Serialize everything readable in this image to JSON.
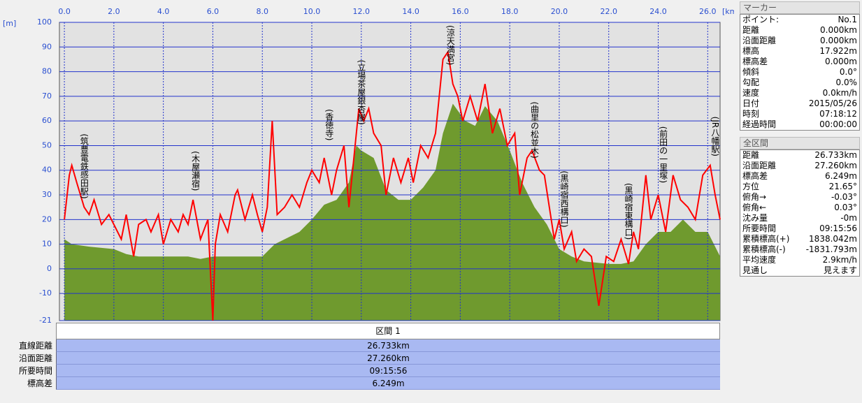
{
  "chart_data": {
    "type": "line",
    "y_unit": "[m]",
    "x_unit": "[km]",
    "xlim": [
      -0.2,
      26.5
    ],
    "ylim": [
      -21,
      100
    ],
    "xticks": [
      {
        "value": 0,
        "label": "0.0"
      },
      {
        "value": 2,
        "label": "2.0"
      },
      {
        "value": 4,
        "label": "4.0"
      },
      {
        "value": 6,
        "label": "6.0"
      },
      {
        "value": 8,
        "label": "8.0"
      },
      {
        "value": 10,
        "label": "10.0"
      },
      {
        "value": 12,
        "label": "12.0"
      },
      {
        "value": 14,
        "label": "14.0"
      },
      {
        "value": 16,
        "label": "16.0"
      },
      {
        "value": 18,
        "label": "18.0"
      },
      {
        "value": 20,
        "label": "20.0"
      },
      {
        "value": 22,
        "label": "22.0"
      },
      {
        "value": 24,
        "label": "24.0"
      },
      {
        "value": 26,
        "label": "26.0"
      }
    ],
    "yticks": [
      100,
      90,
      80,
      70,
      60,
      50,
      40,
      30,
      20,
      10,
      0,
      -10,
      -21
    ],
    "grid": true,
    "terrain": {
      "color": "#6f9a2e",
      "x": [
        0,
        0.3,
        1,
        2,
        2.5,
        3,
        5,
        5.5,
        6,
        8,
        8.3,
        8.5,
        9.5,
        10,
        10.5,
        11,
        11.5,
        11.8,
        12,
        12.5,
        13,
        13.5,
        14,
        14.5,
        15,
        15.3,
        15.7,
        16.2,
        16.6,
        17,
        17.5,
        18,
        18.5,
        19,
        19.5,
        20,
        20.5,
        21,
        22,
        22.5,
        23,
        23.5,
        24,
        24.5,
        25,
        25.5,
        26,
        26.5
      ],
      "values": [
        12,
        10,
        9,
        8,
        6,
        5,
        5,
        4,
        5,
        5,
        8,
        10,
        15,
        20,
        26,
        28,
        35,
        50,
        48,
        45,
        32,
        28,
        28,
        33,
        40,
        55,
        67,
        60,
        58,
        66,
        60,
        48,
        35,
        25,
        18,
        8,
        5,
        3,
        2,
        2,
        3,
        10,
        15,
        15,
        20,
        15,
        15,
        5
      ]
    },
    "track": {
      "color": "#ff0000",
      "x": [
        0,
        0.2,
        0.3,
        0.5,
        0.8,
        1.0,
        1.2,
        1.5,
        1.8,
        2.0,
        2.3,
        2.5,
        2.8,
        3.0,
        3.3,
        3.5,
        3.8,
        4.0,
        4.3,
        4.6,
        4.8,
        5.0,
        5.2,
        5.5,
        5.8,
        6.0,
        6.1,
        6.3,
        6.6,
        6.9,
        7.0,
        7.3,
        7.6,
        7.8,
        8.0,
        8.2,
        8.4,
        8.6,
        8.9,
        9.2,
        9.5,
        9.8,
        10.0,
        10.3,
        10.5,
        10.8,
        11.0,
        11.3,
        11.5,
        11.7,
        11.9,
        12.1,
        12.3,
        12.5,
        12.8,
        13.0,
        13.3,
        13.6,
        13.9,
        14.1,
        14.4,
        14.7,
        15.0,
        15.3,
        15.5,
        15.7,
        15.9,
        16.1,
        16.4,
        16.7,
        17.0,
        17.3,
        17.6,
        17.9,
        18.2,
        18.4,
        18.7,
        18.9,
        19.2,
        19.4,
        19.6,
        19.8,
        20.0,
        20.2,
        20.5,
        20.7,
        21.0,
        21.3,
        21.6,
        21.9,
        22.2,
        22.5,
        22.8,
        23.0,
        23.2,
        23.5,
        23.7,
        24.0,
        24.3,
        24.6,
        24.9,
        25.2,
        25.5,
        25.8,
        26.1,
        26.3,
        26.5
      ],
      "values": [
        20,
        38,
        42,
        35,
        25,
        22,
        28,
        18,
        22,
        18,
        12,
        22,
        5,
        18,
        20,
        15,
        22,
        10,
        20,
        15,
        22,
        18,
        28,
        12,
        20,
        -21,
        10,
        22,
        15,
        30,
        32,
        20,
        30,
        22,
        15,
        25,
        60,
        22,
        25,
        30,
        25,
        35,
        40,
        35,
        45,
        30,
        40,
        50,
        25,
        45,
        65,
        60,
        65,
        55,
        50,
        30,
        45,
        35,
        45,
        35,
        50,
        45,
        55,
        85,
        88,
        75,
        70,
        60,
        70,
        60,
        75,
        55,
        65,
        50,
        55,
        30,
        45,
        48,
        40,
        38,
        25,
        12,
        20,
        8,
        15,
        3,
        8,
        5,
        -15,
        5,
        3,
        12,
        2,
        15,
        8,
        38,
        20,
        30,
        15,
        38,
        28,
        25,
        20,
        38,
        42,
        30,
        20
      ]
    },
    "annotations": [
      {
        "x": 0.8,
        "text": "(筑豊電鉄感田駅)"
      },
      {
        "x": 5.3,
        "text": "(木屋瀬宿)"
      },
      {
        "x": 10.7,
        "text": "(香徳寺)"
      },
      {
        "x": 12.0,
        "text": "(立場茶屋銀杏屋)"
      },
      {
        "x": 15.6,
        "text": "(涼天満宮)"
      },
      {
        "x": 19.0,
        "text": "(曲里の松並木)"
      },
      {
        "x": 20.2,
        "text": "(黒崎宿西構口)"
      },
      {
        "x": 22.8,
        "text": "(黒崎宿東構口)"
      },
      {
        "x": 24.2,
        "text": "(前田の一里塚)"
      },
      {
        "x": 26.3,
        "text": "(JR八幡駅)"
      }
    ]
  },
  "section_table": {
    "header": "区間 1",
    "rows": [
      [
        "直線距離",
        "26.733km"
      ],
      [
        "沿面距離",
        "27.260km"
      ],
      [
        "所要時間",
        "09:15:56"
      ],
      [
        "標高差",
        "6.249m"
      ]
    ]
  },
  "marker_panel": {
    "title": "マーカー",
    "rows": [
      [
        "ポイント:",
        "No.1"
      ],
      [
        "距離",
        "0.000km"
      ],
      [
        "沿面距離",
        "0.000km"
      ],
      [
        "標高",
        "17.922m"
      ],
      [
        "標高差",
        "0.000m"
      ],
      [
        "傾斜",
        "0.0°"
      ],
      [
        "勾配",
        "0.0%"
      ],
      [
        "速度",
        "0.0km/h"
      ],
      [
        "日付",
        "2015/05/26"
      ],
      [
        "時刻",
        "07:18:12"
      ],
      [
        "経過時間",
        "00:00:00"
      ]
    ]
  },
  "total_panel": {
    "title": "全区間",
    "rows": [
      [
        "距離",
        "26.733km"
      ],
      [
        "沿面距離",
        "27.260km"
      ],
      [
        "標高差",
        "6.249m"
      ],
      [
        "方位",
        "21.65°"
      ],
      [
        "俯角→",
        "-0.03°"
      ],
      [
        "俯角←",
        "0.03°"
      ],
      [
        "沈み量",
        "-0m"
      ],
      [
        "所要時間",
        "09:15:56"
      ],
      [
        "累積標高(+)",
        "1838.042m"
      ],
      [
        "累積標高(-)",
        "-1831.793m"
      ],
      [
        "平均速度",
        "2.9km/h"
      ],
      [
        "見通し",
        "見えます"
      ]
    ]
  }
}
